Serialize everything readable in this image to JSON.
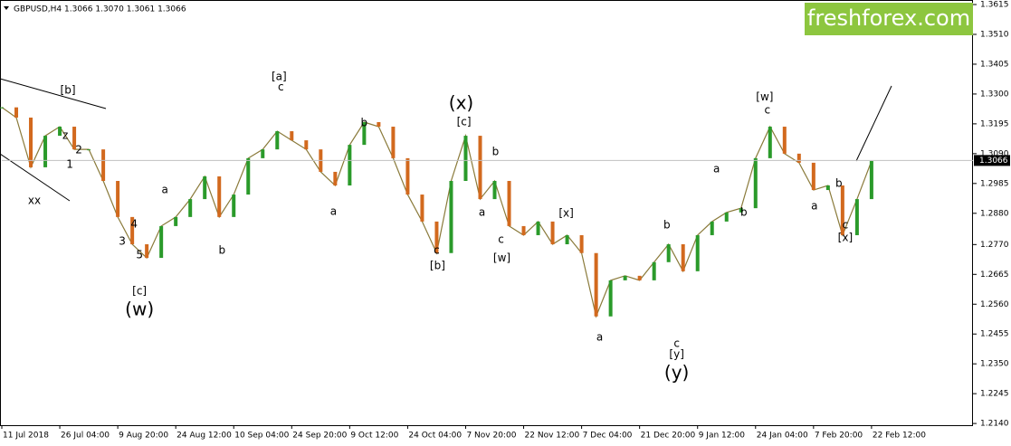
{
  "chart_data": {
    "type": "price",
    "title": "GBPUSD,H4  1.3066 1.3070 1.3061 1.3066",
    "watermark": "freshforex.com",
    "up_color": "#2a9a2a",
    "down_color": "#d2691e",
    "line_color": "#8a7a3a",
    "current_price": {
      "value": 1.3066,
      "label": "1.3066"
    },
    "xlim": [
      0,
      67
    ],
    "xticks": [
      {
        "value": 0,
        "label": "11 Jul 2018"
      },
      {
        "value": 4,
        "label": "26 Jul 04:00"
      },
      {
        "value": 8,
        "label": "9 Aug 20:00"
      },
      {
        "value": 12,
        "label": "24 Aug 12:00"
      },
      {
        "value": 16,
        "label": "10 Sep 04:00"
      },
      {
        "value": 20,
        "label": "24 Sep 20:00"
      },
      {
        "value": 24,
        "label": "9 Oct 12:00"
      },
      {
        "value": 28,
        "label": "24 Oct 04:00"
      },
      {
        "value": 32,
        "label": "7 Nov 20:00"
      },
      {
        "value": 36,
        "label": "22 Nov 12:00"
      },
      {
        "value": 40,
        "label": "7 Dec 04:00"
      },
      {
        "value": 44,
        "label": "21 Dec 20:00"
      },
      {
        "value": 48,
        "label": "9 Jan 12:00"
      },
      {
        "value": 52,
        "label": "24 Jan 04:00"
      },
      {
        "value": 56,
        "label": "7 Feb 20:00"
      },
      {
        "value": 60,
        "label": "22 Feb 12:00"
      }
    ],
    "ylim": [
      1.2134,
      1.3631
    ],
    "yticks": [
      {
        "value": 1.214,
        "label": "1.2140"
      },
      {
        "value": 1.2245,
        "label": "1.2245"
      },
      {
        "value": 1.235,
        "label": "1.2350"
      },
      {
        "value": 1.2455,
        "label": "1.2455"
      },
      {
        "value": 1.256,
        "label": "1.2560"
      },
      {
        "value": 1.2665,
        "label": "1.2665"
      },
      {
        "value": 1.277,
        "label": "1.2770"
      },
      {
        "value": 1.288,
        "label": "1.2880"
      },
      {
        "value": 1.2985,
        "label": "1.2985"
      },
      {
        "value": 1.309,
        "label": "1.3090"
      },
      {
        "value": 1.3195,
        "label": "1.3195"
      },
      {
        "value": 1.33,
        "label": "1.3300"
      },
      {
        "value": 1.3405,
        "label": "1.3405"
      },
      {
        "value": 1.351,
        "label": "1.3510"
      },
      {
        "value": 1.3615,
        "label": "1.3615"
      }
    ],
    "grid": false,
    "values": [
      1.3253,
      1.3217,
      1.3042,
      1.3153,
      1.3185,
      1.3105,
      1.3105,
      1.2994,
      1.2867,
      1.2771,
      1.2723,
      1.2835,
      1.2867,
      1.293,
      1.301,
      1.2867,
      1.2946,
      1.3074,
      1.3105,
      1.3169,
      1.3137,
      1.3105,
      1.3026,
      1.2978,
      1.3121,
      1.3201,
      1.3185,
      1.3074,
      1.2946,
      1.2851,
      1.274,
      1.2994,
      1.3153,
      1.293,
      1.2994,
      1.2835,
      1.2803,
      1.2851,
      1.2771,
      1.2803,
      1.274,
      1.2517,
      1.2644,
      1.266,
      1.2644,
      1.2708,
      1.2771,
      1.2676,
      1.2803,
      1.2851,
      1.2883,
      1.2898,
      1.3074,
      1.3185,
      1.309,
      1.3058,
      1.2962,
      1.2978,
      1.2803,
      1.293,
      1.3064
    ],
    "annotations": [
      {
        "text": "[b]",
        "x": 4.56,
        "y": 1.3313,
        "color": "#2ec22e"
      },
      {
        "text": "z",
        "x": 4.38,
        "y": 1.3153,
        "color": "#1a1aa6"
      },
      {
        "text": "2",
        "x": 5.31,
        "y": 1.3102,
        "color": "#1a1aa6"
      },
      {
        "text": "1",
        "x": 4.69,
        "y": 1.3051,
        "color": "#1a1aa6"
      },
      {
        "text": "xx",
        "x": 2.25,
        "y": 1.2924,
        "color": "#1a1aa6"
      },
      {
        "text": "4",
        "x": 9.13,
        "y": 1.2841,
        "color": "#1a1aa6"
      },
      {
        "text": "3",
        "x": 8.31,
        "y": 1.2781,
        "color": "#1a1aa6"
      },
      {
        "text": "5",
        "x": 9.5,
        "y": 1.2733,
        "color": "#1a1aa6"
      },
      {
        "text": "[c]",
        "x": 9.5,
        "y": 1.2606,
        "color": "#2ec22e"
      },
      {
        "text": "(w)",
        "x": 9.5,
        "y": 1.2539,
        "color": "#e0201a"
      },
      {
        "text": "a",
        "x": 11.25,
        "y": 1.2962,
        "color": "#1a1aa6"
      },
      {
        "text": "b",
        "x": 15.19,
        "y": 1.2749,
        "color": "#1a1aa6"
      },
      {
        "text": "[a]",
        "x": 19.13,
        "y": 1.3361,
        "color": "#2ec22e"
      },
      {
        "text": "c",
        "x": 19.25,
        "y": 1.3323,
        "color": "#1a1aa6"
      },
      {
        "text": "b",
        "x": 25,
        "y": 1.3198,
        "color": "#1a1aa6"
      },
      {
        "text": "a",
        "x": 22.88,
        "y": 1.2886,
        "color": "#1a1aa6"
      },
      {
        "text": "(x)",
        "x": 31.69,
        "y": 1.3264,
        "color": "#e0201a"
      },
      {
        "text": "[c]",
        "x": 31.88,
        "y": 1.3201,
        "color": "#2ec22e"
      },
      {
        "text": "c",
        "x": 30,
        "y": 1.2749,
        "color": "#1a1aa6"
      },
      {
        "text": "[b]",
        "x": 30.06,
        "y": 1.2695,
        "color": "#2ec22e"
      },
      {
        "text": "b",
        "x": 34.06,
        "y": 1.3096,
        "color": "#1a1aa6"
      },
      {
        "text": "a",
        "x": 33.13,
        "y": 1.2883,
        "color": "#1a1aa6"
      },
      {
        "text": "c",
        "x": 34.44,
        "y": 1.2787,
        "color": "#1a1aa6"
      },
      {
        "text": "[w]",
        "x": 34.5,
        "y": 1.2721,
        "color": "#2ec22e"
      },
      {
        "text": "[x]",
        "x": 38.94,
        "y": 1.288,
        "color": "#2ec22e"
      },
      {
        "text": "a",
        "x": 41.25,
        "y": 1.2443,
        "color": "#1a1aa6"
      },
      {
        "text": "b",
        "x": 45.88,
        "y": 1.2838,
        "color": "#1a1aa6"
      },
      {
        "text": "c",
        "x": 46.56,
        "y": 1.2421,
        "color": "#1a1aa6"
      },
      {
        "text": "[y]",
        "x": 46.56,
        "y": 1.2383,
        "color": "#2ec22e"
      },
      {
        "text": "(y)",
        "x": 46.56,
        "y": 1.2316,
        "color": "#e0201a"
      },
      {
        "text": "a",
        "x": 49.31,
        "y": 1.3036,
        "color": "#1a1aa6"
      },
      {
        "text": "b",
        "x": 51.19,
        "y": 1.2883,
        "color": "#1a1aa6"
      },
      {
        "text": "[w]",
        "x": 52.63,
        "y": 1.3289,
        "color": "#2ec22e"
      },
      {
        "text": "c",
        "x": 52.81,
        "y": 1.3242,
        "color": "#1a1aa6"
      },
      {
        "text": "a",
        "x": 56.06,
        "y": 1.2905,
        "color": "#1a1aa6"
      },
      {
        "text": "b",
        "x": 57.75,
        "y": 1.2985,
        "color": "#1a1aa6"
      },
      {
        "text": "c",
        "x": 58.19,
        "y": 1.2838,
        "color": "#1a1aa6"
      },
      {
        "text": "[x]",
        "x": 58.19,
        "y": 1.2793,
        "color": "#2ec22e"
      }
    ]
  }
}
